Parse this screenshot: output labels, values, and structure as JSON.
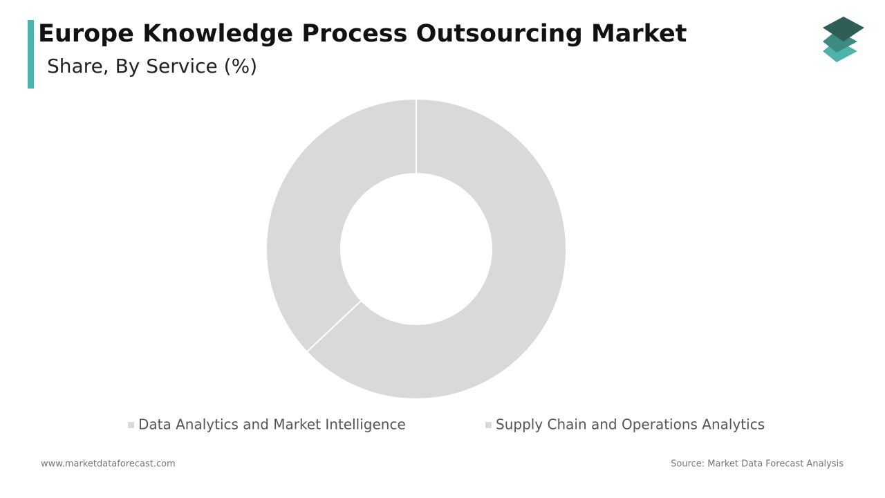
{
  "chart_data": {
    "type": "donut",
    "title": "Europe Knowledge Process Outsourcing Market",
    "subtitle": "Share, By Service (%)",
    "categories": [
      "Data Analytics and Market Intelligence",
      "Supply Chain and Operations Analytics"
    ],
    "values": [
      63,
      37
    ],
    "colors": [
      "#d9d9d9",
      "#d9d9d9"
    ],
    "website": "www.marketdataforecast.com",
    "source": "Source: Market Data Forecast Analysis"
  }
}
